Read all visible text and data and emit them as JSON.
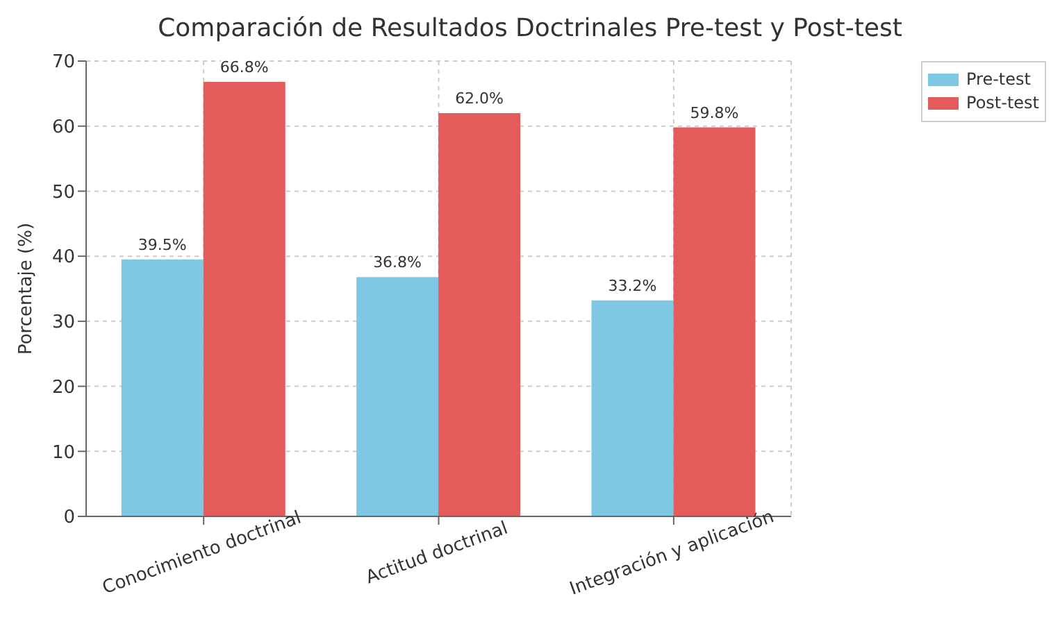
{
  "chart_data": {
    "type": "bar",
    "title": "Comparación de Resultados Doctrinales Pre-test y Post-test",
    "ylabel": "Porcentaje (%)",
    "categories": [
      "Conocimiento doctrinal",
      "Actitud doctrinal",
      "Integración y aplicación"
    ],
    "series": [
      {
        "name": "Pre-test",
        "color": "#7ec8e3",
        "values": [
          39.5,
          36.8,
          33.2
        ],
        "value_labels": [
          "39.5%",
          "36.8%",
          "33.2%"
        ]
      },
      {
        "name": "Post-test",
        "color": "#e35b5a",
        "values": [
          66.8,
          62.0,
          59.8
        ],
        "value_labels": [
          "66.8%",
          "62.0%",
          "59.8%"
        ]
      }
    ],
    "ylim": [
      0,
      70
    ],
    "yticks": [
      0,
      10,
      20,
      30,
      40,
      50,
      60,
      70
    ],
    "grid": true,
    "legend": "top right"
  }
}
